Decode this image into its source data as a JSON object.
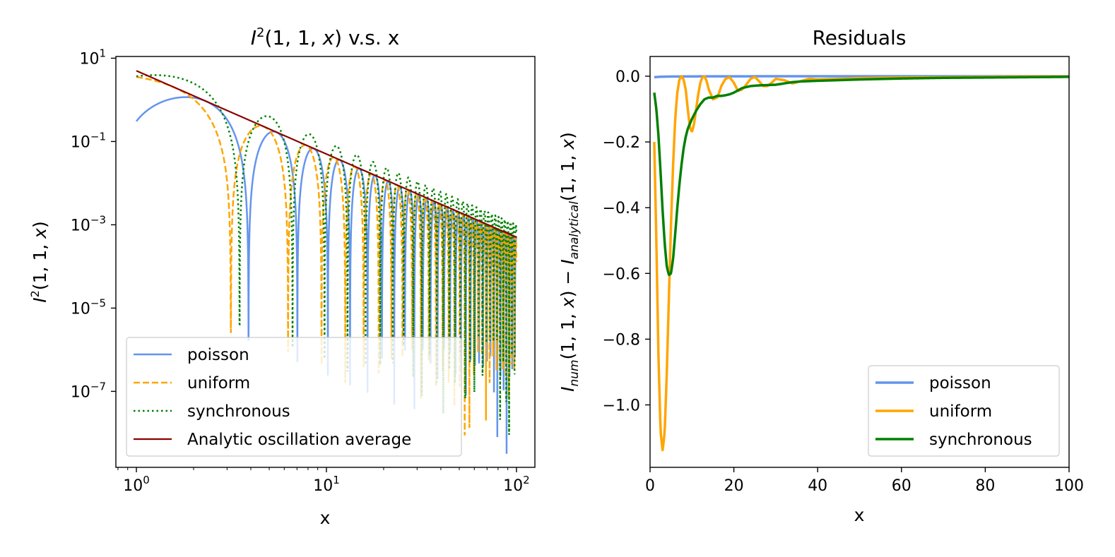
{
  "chart_data": [
    {
      "type": "line",
      "title": "I²(1, 1, x) v.s. x",
      "title_parts": {
        "i": "I",
        "sup": "2",
        "args": "(1, 1, ",
        "xvar": "x",
        "close": ")",
        "rest": " v.s. x"
      },
      "xlabel": "x",
      "ylabel": "I²(1, 1, x)",
      "ylabel_parts": {
        "i": "I",
        "sup": "2",
        "args": "(1, 1, ",
        "xvar": "x",
        "close": ")"
      },
      "xscale": "log",
      "yscale": "log",
      "xlim": [
        0.78,
        125
      ],
      "ylim": [
        1.5e-09,
        11
      ],
      "xticks": [
        {
          "value": 1,
          "base": "10",
          "exp": "0"
        },
        {
          "value": 10,
          "base": "10",
          "exp": "1"
        },
        {
          "value": 100,
          "base": "10",
          "exp": "2"
        }
      ],
      "yticks": [
        {
          "value": 10,
          "base": "10",
          "exp": "1"
        },
        {
          "value": 0.1,
          "base": "10",
          "exp": "−1"
        },
        {
          "value": 0.001,
          "base": "10",
          "exp": "−3"
        },
        {
          "value": 1e-05,
          "base": "10",
          "exp": "−5"
        },
        {
          "value": 1e-07,
          "base": "10",
          "exp": "−7"
        }
      ],
      "legend_position": "lower-left",
      "series": [
        {
          "name": "poisson",
          "color": "#6495ED",
          "style": "solid",
          "model": "osc",
          "phase": 0.75,
          "amp": 1.0,
          "floor": 0.0001
        },
        {
          "name": "uniform",
          "color": "#FFA500",
          "style": "dashed",
          "model": "osc",
          "phase": 0.0,
          "amp": 1.0,
          "floor": 0.0001
        },
        {
          "name": "synchronous",
          "color": "#008000",
          "style": "dotted",
          "model": "osc",
          "phase": 0.35,
          "amp": 2.0,
          "floor": 0.0002
        },
        {
          "name": "Analytic oscillation average",
          "color": "#8B0000",
          "style": "solid",
          "model": "avg",
          "x": [
            1,
            100
          ],
          "values": [
            5.0,
            0.0005
          ]
        }
      ]
    },
    {
      "type": "line",
      "title": "Residuals",
      "xlabel": "x",
      "ylabel_parts": {
        "i1": "I",
        "sub1": "num",
        "mid": "(1, 1, ",
        "xv1": "x",
        "mid2": ") − ",
        "i2": "I",
        "sub2": "analytical",
        "tail": "(1, 1, ",
        "xv2": "x",
        "close": ")"
      },
      "xlim": [
        0,
        100
      ],
      "ylim": [
        -1.19,
        0.06
      ],
      "xticks": [
        0,
        20,
        40,
        60,
        80,
        100
      ],
      "xtick_labels": [
        "0",
        "20",
        "40",
        "60",
        "80",
        "100"
      ],
      "yticks": [
        0.0,
        -0.2,
        -0.4,
        -0.6,
        -0.8,
        -1.0
      ],
      "ytick_labels": [
        "0.0",
        "−0.2",
        "−0.4",
        "−0.6",
        "−0.8",
        "−1.0"
      ],
      "legend_position": "lower-right",
      "series": [
        {
          "name": "poisson",
          "color": "#6495ED",
          "x": [
            1,
            2,
            3,
            5,
            8,
            12,
            20,
            40,
            100
          ],
          "values": [
            -0.003,
            -0.002,
            -0.0015,
            -0.001,
            -0.0008,
            -0.0005,
            -0.0003,
            -0.0002,
            -0.0001
          ]
        },
        {
          "name": "uniform",
          "color": "#FFA500",
          "x": [
            1.0,
            1.5,
            2.0,
            2.5,
            3.0,
            3.5,
            4.0,
            4.5,
            5.0,
            5.5,
            6.0,
            6.5,
            7.0,
            7.5,
            8.0,
            8.5,
            9.0,
            9.5,
            10.0,
            10.5,
            11.0,
            11.5,
            12.0,
            12.5,
            13.0,
            13.5,
            14.0,
            15.0,
            16.0,
            16.5,
            17.0,
            18.0,
            19.0,
            20.0,
            21.0,
            22.0,
            23.0,
            24.0,
            25.0,
            26.0,
            27.0,
            28.0,
            29.0,
            30.0,
            32.0,
            34.0,
            36.0,
            38.0,
            40.0,
            45.0,
            50.0,
            60.0,
            70.0,
            80.0,
            90.0,
            100.0
          ],
          "values": [
            -0.2,
            -0.5,
            -0.85,
            -1.08,
            -1.14,
            -1.08,
            -0.9,
            -0.67,
            -0.45,
            -0.27,
            -0.13,
            -0.05,
            -0.01,
            0.0,
            -0.01,
            -0.04,
            -0.1,
            -0.155,
            -0.17,
            -0.145,
            -0.1,
            -0.055,
            -0.02,
            -0.003,
            0.0,
            -0.015,
            -0.04,
            -0.07,
            -0.065,
            -0.05,
            -0.03,
            -0.008,
            -0.003,
            -0.02,
            -0.045,
            -0.04,
            -0.025,
            -0.008,
            -0.002,
            -0.015,
            -0.03,
            -0.03,
            -0.02,
            -0.008,
            -0.012,
            -0.022,
            -0.015,
            -0.008,
            -0.01,
            -0.008,
            -0.006,
            -0.004,
            -0.003,
            -0.002,
            -0.001,
            -0.001
          ]
        },
        {
          "name": "synchronous",
          "color": "#008000",
          "x": [
            1.0,
            1.5,
            2.0,
            2.5,
            3.0,
            3.5,
            4.0,
            4.5,
            5.0,
            5.5,
            6.0,
            6.5,
            7.0,
            7.5,
            8.0,
            8.5,
            9.0,
            10.0,
            11.0,
            12.0,
            13.0,
            14.0,
            15.0,
            16.0,
            17.0,
            18.0,
            19.0,
            20.0,
            21.0,
            22.0,
            24.0,
            26.0,
            28.0,
            30.0,
            32.0,
            34.0,
            36.0,
            40.0,
            45.0,
            50.0,
            60.0,
            70.0,
            80.0,
            90.0,
            100.0
          ],
          "values": [
            -0.05,
            -0.1,
            -0.18,
            -0.29,
            -0.41,
            -0.51,
            -0.58,
            -0.605,
            -0.6,
            -0.555,
            -0.48,
            -0.4,
            -0.33,
            -0.27,
            -0.22,
            -0.185,
            -0.16,
            -0.13,
            -0.105,
            -0.085,
            -0.07,
            -0.065,
            -0.065,
            -0.06,
            -0.06,
            -0.058,
            -0.055,
            -0.05,
            -0.043,
            -0.036,
            -0.03,
            -0.028,
            -0.027,
            -0.026,
            -0.022,
            -0.018,
            -0.016,
            -0.014,
            -0.012,
            -0.01,
            -0.007,
            -0.005,
            -0.004,
            -0.003,
            -0.002
          ]
        }
      ]
    }
  ]
}
